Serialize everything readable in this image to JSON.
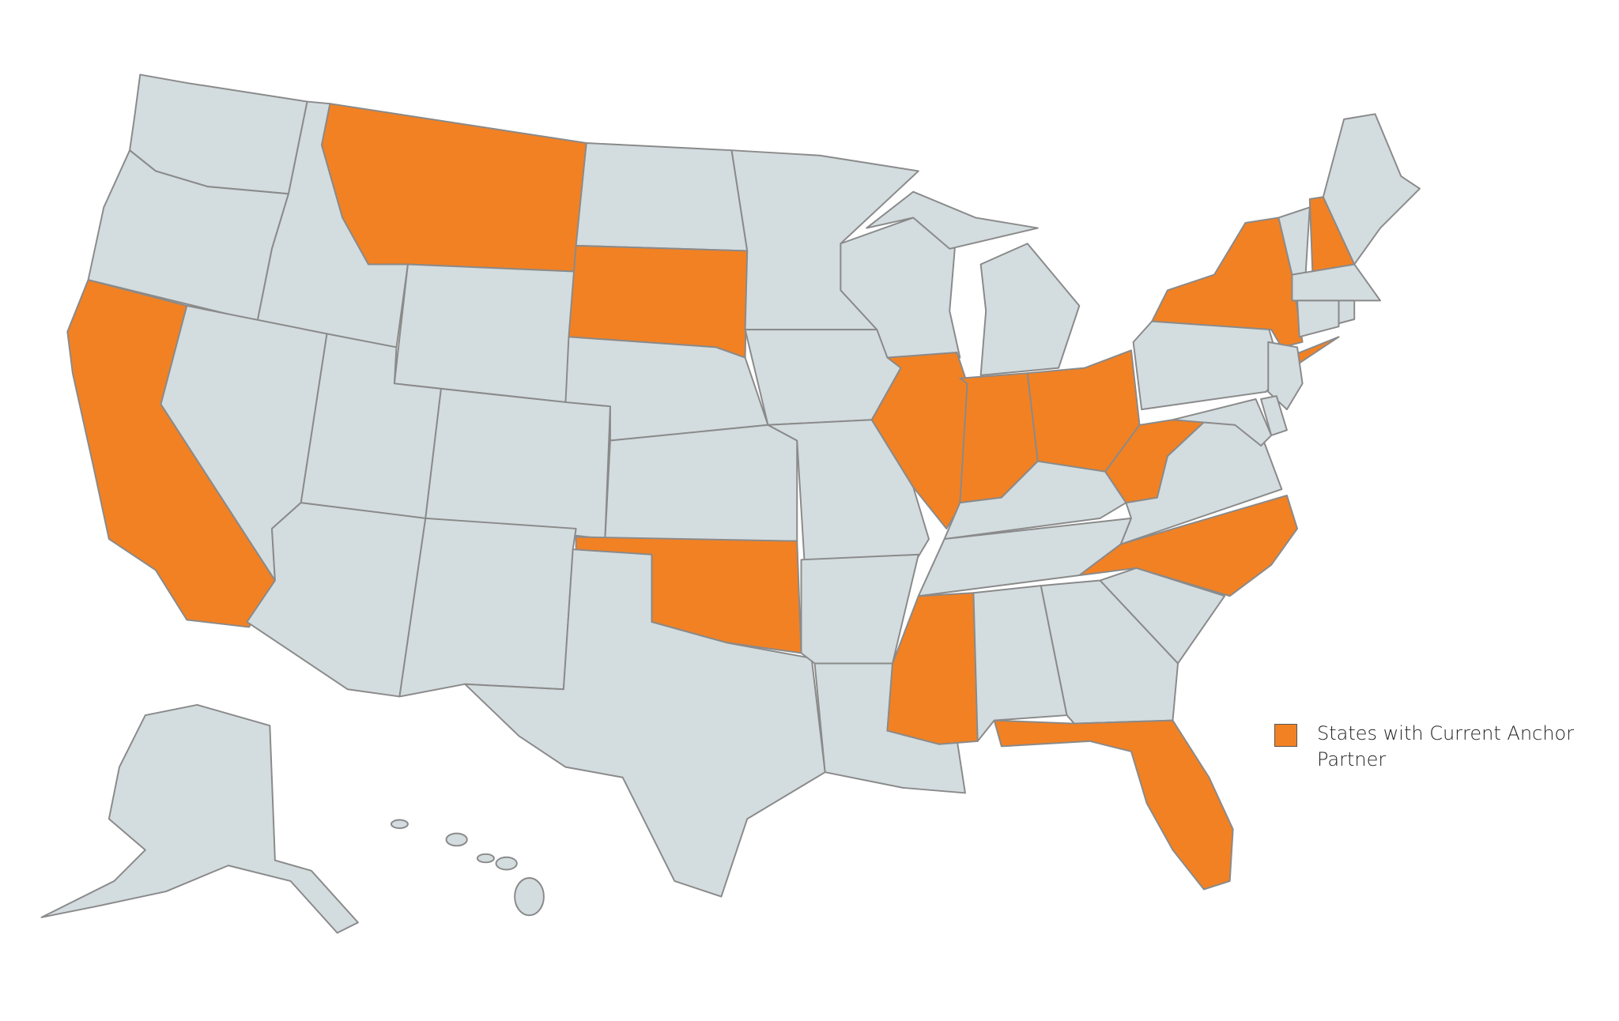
{
  "map": {
    "type": "choropleth",
    "region": "United States",
    "colors": {
      "highlighted": "#f28123",
      "default": "#d3dcdf",
      "border": "#8a8a8a"
    },
    "highlighted_states": [
      "CA",
      "MT",
      "SD",
      "OK",
      "IL",
      "IN",
      "OH",
      "WV",
      "MS",
      "FL",
      "NC",
      "NY",
      "NH"
    ]
  },
  "legend": {
    "items": [
      {
        "label": "States with Current Anchor Partner",
        "color": "#f28123"
      }
    ]
  }
}
